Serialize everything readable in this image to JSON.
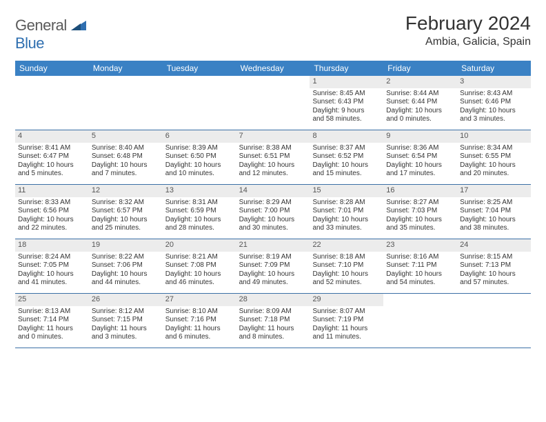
{
  "logo": {
    "general": "General",
    "blue": "Blue"
  },
  "title": "February 2024",
  "location": "Ambia, Galicia, Spain",
  "colors": {
    "header_bar": "#3a81c4",
    "week_divider": "#3a6fa5",
    "day_number_bg": "#ececec",
    "text": "#333333",
    "logo_gray": "#5a5a5a",
    "logo_blue": "#2f6fb0"
  },
  "weekdays": [
    "Sunday",
    "Monday",
    "Tuesday",
    "Wednesday",
    "Thursday",
    "Friday",
    "Saturday"
  ],
  "weeks": [
    [
      {
        "empty": true
      },
      {
        "empty": true
      },
      {
        "empty": true
      },
      {
        "empty": true
      },
      {
        "day": "1",
        "sunrise": "Sunrise: 8:45 AM",
        "sunset": "Sunset: 6:43 PM",
        "daylight1": "Daylight: 9 hours",
        "daylight2": "and 58 minutes."
      },
      {
        "day": "2",
        "sunrise": "Sunrise: 8:44 AM",
        "sunset": "Sunset: 6:44 PM",
        "daylight1": "Daylight: 10 hours",
        "daylight2": "and 0 minutes."
      },
      {
        "day": "3",
        "sunrise": "Sunrise: 8:43 AM",
        "sunset": "Sunset: 6:46 PM",
        "daylight1": "Daylight: 10 hours",
        "daylight2": "and 3 minutes."
      }
    ],
    [
      {
        "day": "4",
        "sunrise": "Sunrise: 8:41 AM",
        "sunset": "Sunset: 6:47 PM",
        "daylight1": "Daylight: 10 hours",
        "daylight2": "and 5 minutes."
      },
      {
        "day": "5",
        "sunrise": "Sunrise: 8:40 AM",
        "sunset": "Sunset: 6:48 PM",
        "daylight1": "Daylight: 10 hours",
        "daylight2": "and 7 minutes."
      },
      {
        "day": "6",
        "sunrise": "Sunrise: 8:39 AM",
        "sunset": "Sunset: 6:50 PM",
        "daylight1": "Daylight: 10 hours",
        "daylight2": "and 10 minutes."
      },
      {
        "day": "7",
        "sunrise": "Sunrise: 8:38 AM",
        "sunset": "Sunset: 6:51 PM",
        "daylight1": "Daylight: 10 hours",
        "daylight2": "and 12 minutes."
      },
      {
        "day": "8",
        "sunrise": "Sunrise: 8:37 AM",
        "sunset": "Sunset: 6:52 PM",
        "daylight1": "Daylight: 10 hours",
        "daylight2": "and 15 minutes."
      },
      {
        "day": "9",
        "sunrise": "Sunrise: 8:36 AM",
        "sunset": "Sunset: 6:54 PM",
        "daylight1": "Daylight: 10 hours",
        "daylight2": "and 17 minutes."
      },
      {
        "day": "10",
        "sunrise": "Sunrise: 8:34 AM",
        "sunset": "Sunset: 6:55 PM",
        "daylight1": "Daylight: 10 hours",
        "daylight2": "and 20 minutes."
      }
    ],
    [
      {
        "day": "11",
        "sunrise": "Sunrise: 8:33 AM",
        "sunset": "Sunset: 6:56 PM",
        "daylight1": "Daylight: 10 hours",
        "daylight2": "and 22 minutes."
      },
      {
        "day": "12",
        "sunrise": "Sunrise: 8:32 AM",
        "sunset": "Sunset: 6:57 PM",
        "daylight1": "Daylight: 10 hours",
        "daylight2": "and 25 minutes."
      },
      {
        "day": "13",
        "sunrise": "Sunrise: 8:31 AM",
        "sunset": "Sunset: 6:59 PM",
        "daylight1": "Daylight: 10 hours",
        "daylight2": "and 28 minutes."
      },
      {
        "day": "14",
        "sunrise": "Sunrise: 8:29 AM",
        "sunset": "Sunset: 7:00 PM",
        "daylight1": "Daylight: 10 hours",
        "daylight2": "and 30 minutes."
      },
      {
        "day": "15",
        "sunrise": "Sunrise: 8:28 AM",
        "sunset": "Sunset: 7:01 PM",
        "daylight1": "Daylight: 10 hours",
        "daylight2": "and 33 minutes."
      },
      {
        "day": "16",
        "sunrise": "Sunrise: 8:27 AM",
        "sunset": "Sunset: 7:03 PM",
        "daylight1": "Daylight: 10 hours",
        "daylight2": "and 35 minutes."
      },
      {
        "day": "17",
        "sunrise": "Sunrise: 8:25 AM",
        "sunset": "Sunset: 7:04 PM",
        "daylight1": "Daylight: 10 hours",
        "daylight2": "and 38 minutes."
      }
    ],
    [
      {
        "day": "18",
        "sunrise": "Sunrise: 8:24 AM",
        "sunset": "Sunset: 7:05 PM",
        "daylight1": "Daylight: 10 hours",
        "daylight2": "and 41 minutes."
      },
      {
        "day": "19",
        "sunrise": "Sunrise: 8:22 AM",
        "sunset": "Sunset: 7:06 PM",
        "daylight1": "Daylight: 10 hours",
        "daylight2": "and 44 minutes."
      },
      {
        "day": "20",
        "sunrise": "Sunrise: 8:21 AM",
        "sunset": "Sunset: 7:08 PM",
        "daylight1": "Daylight: 10 hours",
        "daylight2": "and 46 minutes."
      },
      {
        "day": "21",
        "sunrise": "Sunrise: 8:19 AM",
        "sunset": "Sunset: 7:09 PM",
        "daylight1": "Daylight: 10 hours",
        "daylight2": "and 49 minutes."
      },
      {
        "day": "22",
        "sunrise": "Sunrise: 8:18 AM",
        "sunset": "Sunset: 7:10 PM",
        "daylight1": "Daylight: 10 hours",
        "daylight2": "and 52 minutes."
      },
      {
        "day": "23",
        "sunrise": "Sunrise: 8:16 AM",
        "sunset": "Sunset: 7:11 PM",
        "daylight1": "Daylight: 10 hours",
        "daylight2": "and 54 minutes."
      },
      {
        "day": "24",
        "sunrise": "Sunrise: 8:15 AM",
        "sunset": "Sunset: 7:13 PM",
        "daylight1": "Daylight: 10 hours",
        "daylight2": "and 57 minutes."
      }
    ],
    [
      {
        "day": "25",
        "sunrise": "Sunrise: 8:13 AM",
        "sunset": "Sunset: 7:14 PM",
        "daylight1": "Daylight: 11 hours",
        "daylight2": "and 0 minutes."
      },
      {
        "day": "26",
        "sunrise": "Sunrise: 8:12 AM",
        "sunset": "Sunset: 7:15 PM",
        "daylight1": "Daylight: 11 hours",
        "daylight2": "and 3 minutes."
      },
      {
        "day": "27",
        "sunrise": "Sunrise: 8:10 AM",
        "sunset": "Sunset: 7:16 PM",
        "daylight1": "Daylight: 11 hours",
        "daylight2": "and 6 minutes."
      },
      {
        "day": "28",
        "sunrise": "Sunrise: 8:09 AM",
        "sunset": "Sunset: 7:18 PM",
        "daylight1": "Daylight: 11 hours",
        "daylight2": "and 8 minutes."
      },
      {
        "day": "29",
        "sunrise": "Sunrise: 8:07 AM",
        "sunset": "Sunset: 7:19 PM",
        "daylight1": "Daylight: 11 hours",
        "daylight2": "and 11 minutes."
      },
      {
        "empty": true
      },
      {
        "empty": true
      }
    ]
  ]
}
